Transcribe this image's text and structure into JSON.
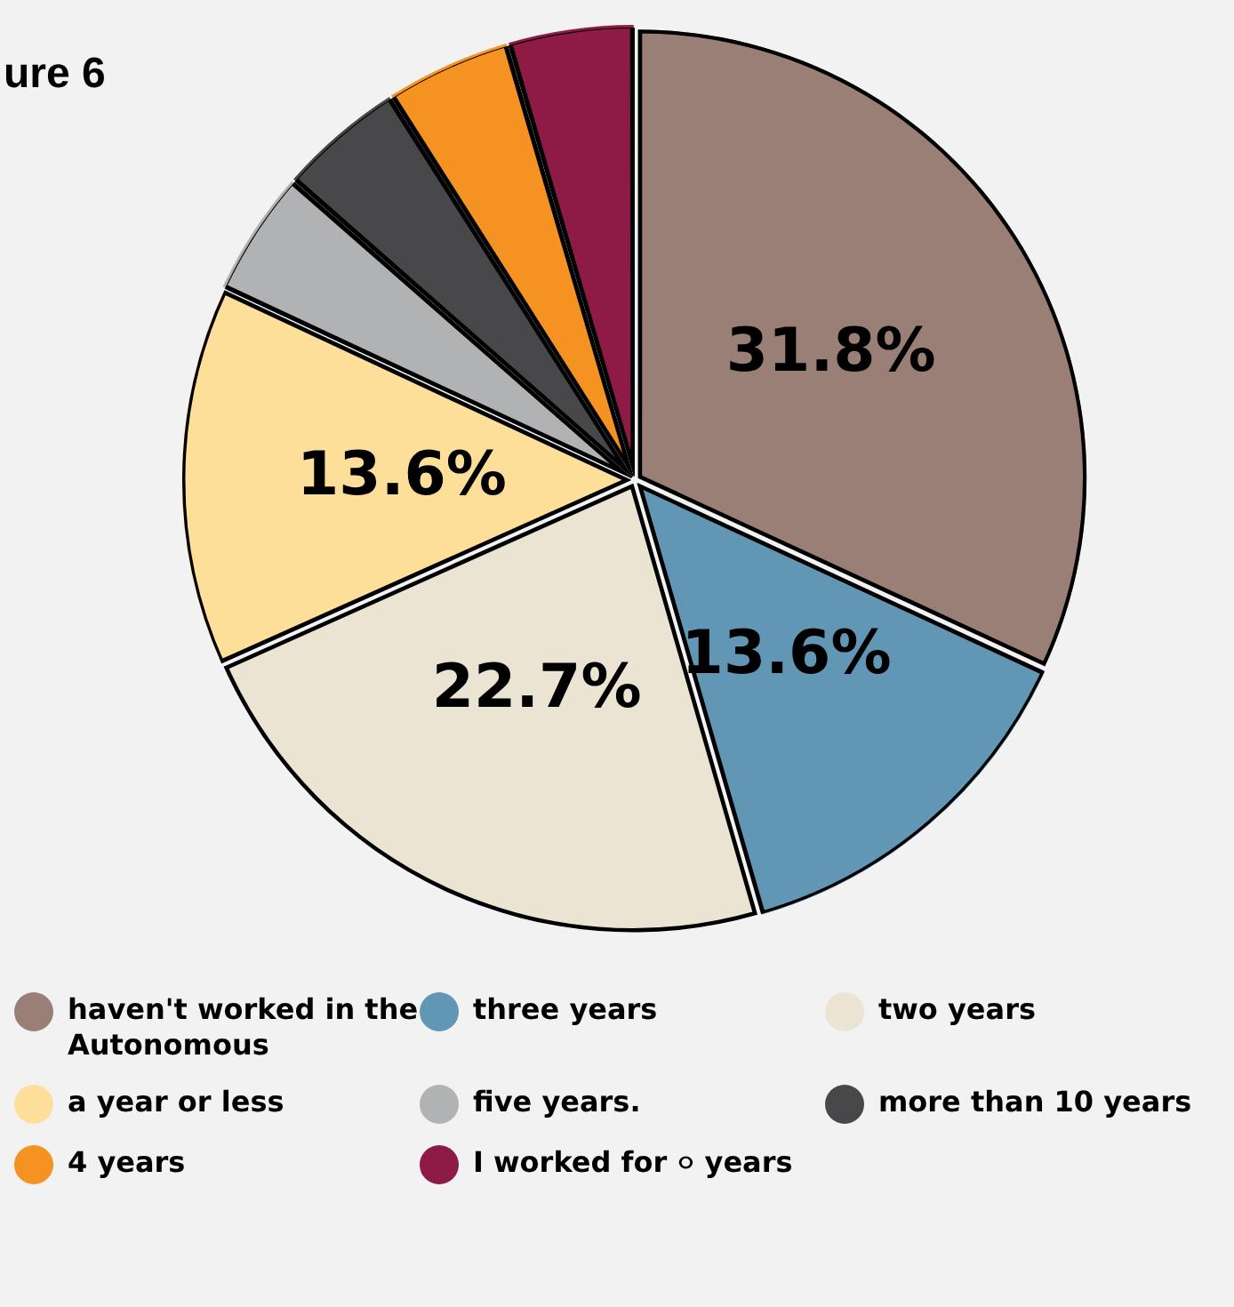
{
  "chart_data": {
    "type": "pie",
    "title": "ure 6",
    "categories": [
      "haven't worked in the Autonomous",
      "three years",
      "two years",
      "a year or less",
      "five years.",
      "more than 10 years",
      "4 years",
      "I worked for ০ years"
    ],
    "values": [
      31.8,
      13.6,
      22.7,
      13.6,
      4.5,
      4.5,
      4.5,
      4.5
    ],
    "colors": [
      "#9a7f76",
      "#6196b4",
      "#ebe4d3",
      "#fddf9a",
      "#b1b2b4",
      "#48484a",
      "#f59322",
      "#8e1b45"
    ],
    "value_labels": [
      "31.8%",
      "13.6%",
      "22.7%",
      "13.6%",
      null,
      null,
      null,
      null
    ],
    "legend": "bottom"
  }
}
